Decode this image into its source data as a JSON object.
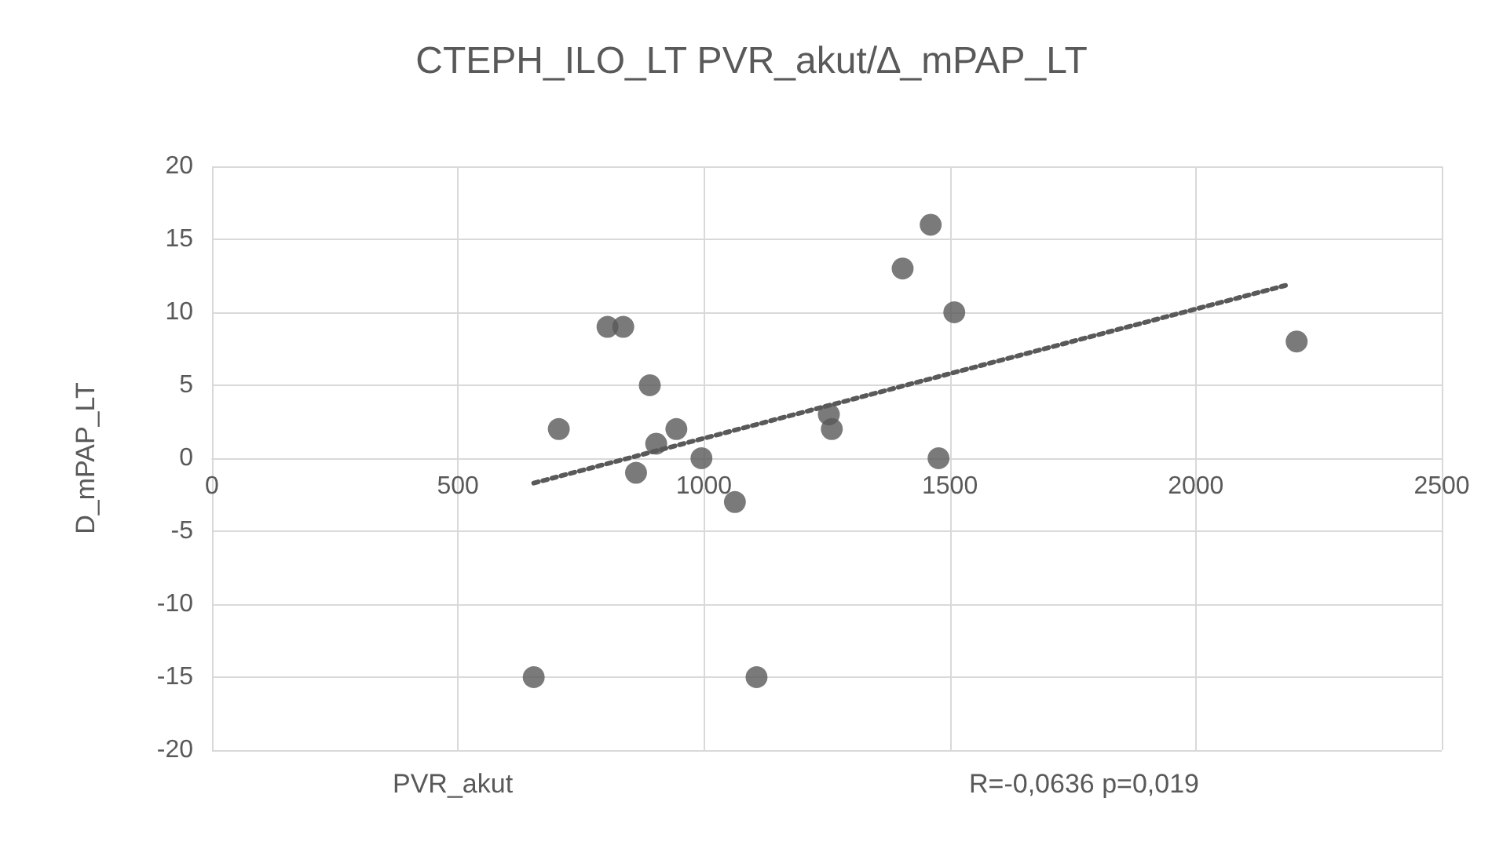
{
  "chart_data": {
    "type": "scatter",
    "title": "CTEPH_ILO_LT PVR_akut/∆_mPAP_LT",
    "xlabel": "PVR_akut",
    "ylabel": "D_mPAP_LT",
    "annotations": [
      "R=-0,0636 p=0,019"
    ],
    "series": [
      {
        "color": "#595959",
        "marker": "circle",
        "x": [
          705,
          804,
          836,
          890,
          903,
          944,
          862,
          995,
          1063,
          654,
          1107,
          1254,
          1260,
          1404,
          1461,
          1477,
          1509,
          2205
        ],
        "values": [
          2,
          9,
          9,
          5,
          1,
          2,
          -1,
          0,
          -3,
          -15,
          -15,
          3,
          2,
          13,
          16,
          0,
          10,
          8
        ]
      },
      {
        "type": "line",
        "color": "#595959",
        "line_style": "dotted",
        "x": [
          654,
          2189
        ],
        "values": [
          -1.7,
          11.9
        ]
      }
    ],
    "xlim": [
      0,
      2500
    ],
    "xticks": [
      0,
      500,
      1000,
      1500,
      2000,
      2500
    ],
    "ylim": [
      -20,
      20
    ],
    "yticks": [
      -20,
      -15,
      -10,
      -5,
      0,
      5,
      10,
      15,
      20
    ],
    "grid": true
  }
}
